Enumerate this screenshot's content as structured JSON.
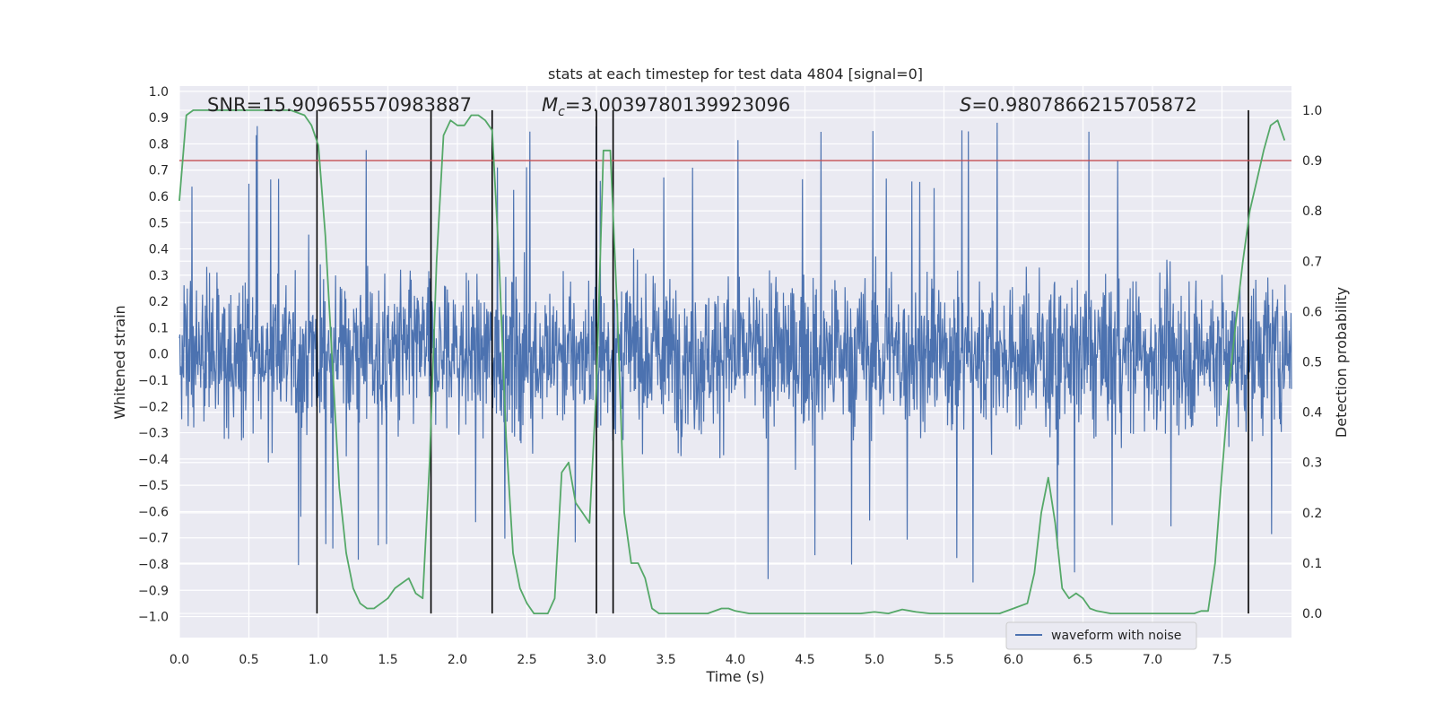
{
  "chart_data": {
    "type": "line",
    "title": "stats at each timestep for test data 4804 [signal=0]",
    "xlabel": "Time (s)",
    "ylabel_left": "Whitened strain",
    "ylabel_right": "Detection probability",
    "xlim": [
      0.0,
      8.0
    ],
    "ylim_left": [
      -1.08,
      1.02
    ],
    "ylim_right": [
      -0.048,
      1.048
    ],
    "x_ticks": [
      "0.0",
      "0.5",
      "1.0",
      "1.5",
      "2.0",
      "2.5",
      "3.0",
      "3.5",
      "4.0",
      "4.5",
      "5.0",
      "5.5",
      "6.0",
      "6.5",
      "7.0",
      "7.5"
    ],
    "y_ticks_left": [
      "−1.0",
      "−0.9",
      "−0.8",
      "−0.7",
      "−0.6",
      "−0.5",
      "−0.4",
      "−0.3",
      "−0.2",
      "−0.1",
      "0.0",
      "0.1",
      "0.2",
      "0.3",
      "0.4",
      "0.5",
      "0.6",
      "0.7",
      "0.8",
      "0.9",
      "1.0"
    ],
    "y_ticks_right": [
      "0.0",
      "0.1",
      "0.2",
      "0.3",
      "0.4",
      "0.5",
      "0.6",
      "0.7",
      "0.8",
      "0.9",
      "1.0"
    ],
    "grid": true,
    "legend": {
      "placement": "lower-right",
      "entries": [
        "waveform with noise"
      ]
    },
    "annotations": {
      "snr": "SNR=15.909655570983887",
      "mc_symbol": "M",
      "mc_sub": "c",
      "mc_value": "=3.0039780139923096",
      "s_symbol": "S",
      "s_value": "=0.9807866215705872"
    },
    "series": [
      {
        "name": "waveform with noise",
        "color": "#4c72b0",
        "description_amplitude_envelope": 0.45,
        "peak_range": [
          -1.0,
          0.93
        ]
      },
      {
        "color": "#55a868",
        "axis": "right",
        "x": [
          0.0,
          0.05,
          0.1,
          0.2,
          0.3,
          0.5,
          0.7,
          0.8,
          0.9,
          0.95,
          1.0,
          1.05,
          1.1,
          1.15,
          1.2,
          1.25,
          1.3,
          1.35,
          1.4,
          1.45,
          1.5,
          1.55,
          1.6,
          1.65,
          1.7,
          1.75,
          1.8,
          1.85,
          1.9,
          1.95,
          2.0,
          2.05,
          2.1,
          2.15,
          2.2,
          2.25,
          2.3,
          2.35,
          2.4,
          2.45,
          2.5,
          2.55,
          2.6,
          2.65,
          2.7,
          2.75,
          2.8,
          2.85,
          2.9,
          2.95,
          3.0,
          3.05,
          3.1,
          3.15,
          3.2,
          3.25,
          3.3,
          3.35,
          3.4,
          3.45,
          3.5,
          3.6,
          3.7,
          3.8,
          3.9,
          3.95,
          4.0,
          4.1,
          4.2,
          4.3,
          4.5,
          4.7,
          4.9,
          5.0,
          5.1,
          5.2,
          5.3,
          5.4,
          5.5,
          5.6,
          5.7,
          5.8,
          5.9,
          6.0,
          6.1,
          6.15,
          6.2,
          6.25,
          6.3,
          6.35,
          6.4,
          6.45,
          6.5,
          6.55,
          6.6,
          6.7,
          6.8,
          6.9,
          7.0,
          7.1,
          7.2,
          7.3,
          7.35,
          7.4,
          7.45,
          7.5,
          7.55,
          7.6,
          7.65,
          7.7,
          7.75,
          7.8,
          7.85,
          7.9,
          7.95
        ],
        "y": [
          0.82,
          0.99,
          1.0,
          1.0,
          1.0,
          1.0,
          1.0,
          1.0,
          0.99,
          0.97,
          0.93,
          0.75,
          0.5,
          0.25,
          0.12,
          0.05,
          0.02,
          0.01,
          0.01,
          0.02,
          0.03,
          0.05,
          0.06,
          0.07,
          0.04,
          0.03,
          0.3,
          0.7,
          0.95,
          0.98,
          0.97,
          0.97,
          0.99,
          0.99,
          0.98,
          0.96,
          0.7,
          0.35,
          0.12,
          0.05,
          0.02,
          0.0,
          0.0,
          0.0,
          0.03,
          0.28,
          0.3,
          0.22,
          0.2,
          0.18,
          0.45,
          0.92,
          0.92,
          0.6,
          0.2,
          0.1,
          0.1,
          0.07,
          0.01,
          0.0,
          0.0,
          0.0,
          0.0,
          0.0,
          0.01,
          0.01,
          0.005,
          0.0,
          0.0,
          0.0,
          0.0,
          0.0,
          0.0,
          0.003,
          0.0,
          0.008,
          0.003,
          0.0,
          0.0,
          0.0,
          0.0,
          0.0,
          0.0,
          0.01,
          0.02,
          0.08,
          0.2,
          0.27,
          0.18,
          0.05,
          0.03,
          0.04,
          0.03,
          0.01,
          0.005,
          0.0,
          0.0,
          0.0,
          0.0,
          0.0,
          0.0,
          0.0,
          0.005,
          0.005,
          0.1,
          0.28,
          0.45,
          0.58,
          0.7,
          0.8,
          0.86,
          0.92,
          0.97,
          0.98,
          0.94
        ]
      },
      {
        "color": "#c44e52",
        "axis": "right",
        "y_constant": 0.9
      }
    ],
    "vertical_lines_x": [
      0.99,
      1.81,
      2.25,
      3.0,
      3.12,
      7.69
    ]
  }
}
